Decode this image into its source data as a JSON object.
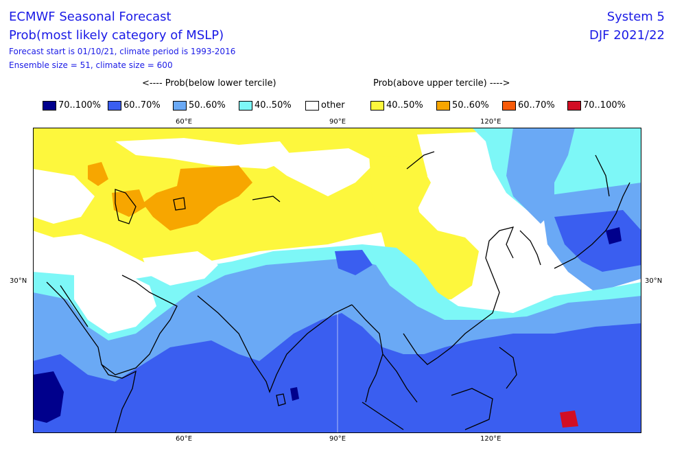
{
  "header": {
    "title": "ECMWF Seasonal Forecast",
    "subtitle": "Prob(most likely category of MSLP)",
    "forecast_line": "Forecast start is 01/10/21, climate period is 1993-2016",
    "ensemble_line": "Ensemble size = 51, climate size = 600",
    "system": "System 5",
    "season": "DJF 2021/22"
  },
  "legend": {
    "below_label": "<---- Prob(below lower tercile)",
    "above_label": "Prob(above upper tercile) ---->",
    "items": [
      {
        "label": "70..100%",
        "color": "#00008c"
      },
      {
        "label": "60..70%",
        "color": "#3a5ef0"
      },
      {
        "label": "50..60%",
        "color": "#6aa9f5"
      },
      {
        "label": "40..50%",
        "color": "#7df7f7"
      },
      {
        "label": "other",
        "color": "#ffffff"
      },
      {
        "label": "40..50%",
        "color": "#fdf73d"
      },
      {
        "label": "50..60%",
        "color": "#f7a600"
      },
      {
        "label": "60..70%",
        "color": "#f75a08"
      },
      {
        "label": "70..100%",
        "color": "#d10e24"
      }
    ]
  },
  "axes": {
    "top_ticks": [
      "60°E",
      "90°E",
      "120°E"
    ],
    "bottom_ticks": [
      "60°E",
      "90°E",
      "120°E"
    ],
    "left_ticks": [
      "30°N"
    ],
    "right_ticks": [
      "30°N"
    ]
  }
}
